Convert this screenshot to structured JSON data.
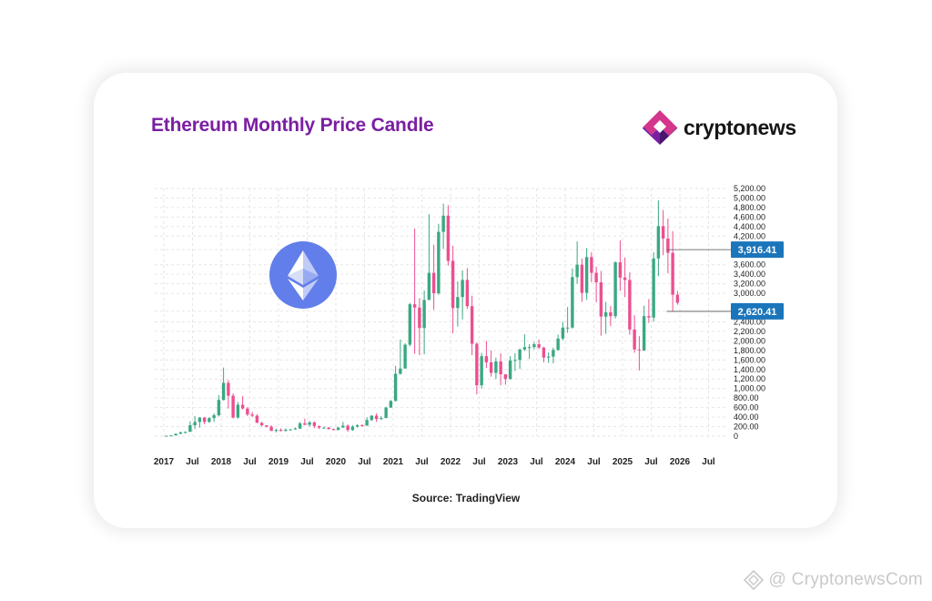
{
  "header": {
    "title": "Ethereum Monthly Price Candle",
    "logo_text": "cryptonews"
  },
  "footer": {
    "source": "Source: TradingView",
    "watermark": "@ CryptonewsCom"
  },
  "colors": {
    "title": "#7a1fa2",
    "up": "#3aa882",
    "down": "#ec4f91",
    "price_tag": "#1b75bb",
    "eth_badge": "#627eea",
    "logo_purple": "#7a1fa2",
    "logo_pink": "#d4368c"
  },
  "icons": {
    "eth": "ethereum-icon",
    "logo": "cryptonews-logo-icon",
    "watermark": "cryptonews-watermark-icon"
  },
  "chart_data": {
    "type": "candlestick",
    "title": "Ethereum Monthly Price Candle",
    "y_axis_position": "right",
    "grid": true,
    "ylim": [
      0,
      5200
    ],
    "y_ticks": [
      "0",
      "200.00",
      "400.00",
      "600.00",
      "800.00",
      "1,000.00",
      "1,200.00",
      "1,400.00",
      "1,600.00",
      "1,800.00",
      "2,000.00",
      "2,200.00",
      "2,400.00",
      "2,620.41",
      "3,000.00",
      "3,200.00",
      "3,400.00",
      "3,600.00",
      "3,916.41",
      "4,200.00",
      "4,400.00",
      "4,600.00",
      "4,800.00",
      "5,000.00",
      "5,200.00"
    ],
    "x_ticks": [
      {
        "label": "2017",
        "t": 0
      },
      {
        "label": "Jul",
        "t": 6
      },
      {
        "label": "2018",
        "t": 12
      },
      {
        "label": "Jul",
        "t": 18
      },
      {
        "label": "2019",
        "t": 24
      },
      {
        "label": "Jul",
        "t": 30
      },
      {
        "label": "2020",
        "t": 36
      },
      {
        "label": "Jul",
        "t": 42
      },
      {
        "label": "2021",
        "t": 48
      },
      {
        "label": "Jul",
        "t": 54
      },
      {
        "label": "2022",
        "t": 60
      },
      {
        "label": "Jul",
        "t": 66
      },
      {
        "label": "2023",
        "t": 72
      },
      {
        "label": "Jul",
        "t": 78
      },
      {
        "label": "2024",
        "t": 84
      },
      {
        "label": "Jul",
        "t": 90
      },
      {
        "label": "2025",
        "t": 96
      },
      {
        "label": "Jul",
        "t": 102
      },
      {
        "label": "2026",
        "t": 108
      },
      {
        "label": "Jul",
        "t": 114
      }
    ],
    "price_labels": [
      {
        "text": "3,916.41",
        "value": 3916.41
      },
      {
        "text": "2,620.41",
        "value": 2620.41
      }
    ],
    "candles": [
      [
        8,
        8,
        10,
        7
      ],
      [
        10,
        16,
        17,
        9
      ],
      [
        16,
        50,
        55,
        15
      ],
      [
        50,
        80,
        95,
        45
      ],
      [
        80,
        90,
        100,
        60
      ],
      [
        90,
        230,
        310,
        200
      ],
      [
        230,
        300,
        420,
        150
      ],
      [
        300,
        390,
        400,
        180
      ],
      [
        390,
        300,
        400,
        250
      ],
      [
        300,
        380,
        395,
        280
      ],
      [
        380,
        440,
        480,
        300
      ],
      [
        440,
        760,
        860,
        410
      ],
      [
        760,
        1120,
        1440,
        750
      ],
      [
        1120,
        850,
        1180,
        580
      ],
      [
        850,
        390,
        900,
        370
      ],
      [
        390,
        660,
        720,
        370
      ],
      [
        660,
        580,
        840,
        560
      ],
      [
        580,
        455,
        610,
        420
      ],
      [
        455,
        430,
        510,
        400
      ],
      [
        430,
        280,
        460,
        280
      ],
      [
        280,
        230,
        300,
        200
      ],
      [
        230,
        200,
        230,
        180
      ],
      [
        200,
        110,
        230,
        110
      ],
      [
        110,
        130,
        160,
        80
      ],
      [
        130,
        110,
        165,
        100
      ],
      [
        110,
        135,
        165,
        100
      ],
      [
        135,
        140,
        155,
        130
      ],
      [
        140,
        160,
        185,
        135
      ],
      [
        160,
        270,
        300,
        150
      ],
      [
        270,
        240,
        370,
        230
      ],
      [
        240,
        290,
        320,
        200
      ],
      [
        290,
        215,
        310,
        170
      ],
      [
        215,
        180,
        220,
        150
      ],
      [
        180,
        180,
        200,
        160
      ],
      [
        180,
        150,
        190,
        140
      ],
      [
        150,
        130,
        160,
        120
      ],
      [
        130,
        180,
        200,
        125
      ],
      [
        180,
        220,
        300,
        175
      ],
      [
        220,
        130,
        250,
        90
      ],
      [
        130,
        200,
        230,
        110
      ],
      [
        200,
        230,
        250,
        180
      ],
      [
        230,
        220,
        250,
        200
      ],
      [
        220,
        340,
        400,
        220
      ],
      [
        340,
        430,
        440,
        320
      ],
      [
        430,
        360,
        480,
        300
      ],
      [
        360,
        380,
        420,
        340
      ],
      [
        380,
        600,
        620,
        380
      ],
      [
        600,
        740,
        760,
        600
      ],
      [
        740,
        1310,
        1475,
        730
      ],
      [
        1310,
        1420,
        2030,
        1290
      ],
      [
        1420,
        1920,
        1950,
        1420
      ],
      [
        1920,
        2770,
        2800,
        1890
      ],
      [
        2770,
        2700,
        4360,
        1730
      ],
      [
        2700,
        2270,
        2900,
        1700
      ],
      [
        2270,
        2860,
        3060,
        1720
      ],
      [
        2860,
        3430,
        4660,
        2940
      ],
      [
        3430,
        3000,
        4020,
        2650
      ],
      [
        3000,
        4290,
        4460,
        2970
      ],
      [
        4290,
        4630,
        4880,
        3930
      ],
      [
        4630,
        3680,
        4850,
        3580
      ],
      [
        3680,
        2690,
        4000,
        2160
      ],
      [
        2690,
        2920,
        3250,
        2300
      ],
      [
        2920,
        3280,
        3480,
        2450
      ],
      [
        3280,
        2730,
        3530,
        2670
      ],
      [
        2730,
        1940,
        2950,
        1700
      ],
      [
        1940,
        1070,
        1970,
        880
      ],
      [
        1070,
        1680,
        1750,
        1000
      ],
      [
        1680,
        1550,
        2000,
        1430
      ],
      [
        1550,
        1330,
        1800,
        1250
      ],
      [
        1330,
        1570,
        1650,
        1200
      ],
      [
        1570,
        1300,
        1740,
        1070
      ],
      [
        1300,
        1200,
        1300,
        1080
      ],
      [
        1200,
        1590,
        1680,
        1190
      ],
      [
        1590,
        1600,
        1740,
        1370
      ],
      [
        1600,
        1820,
        1840,
        1410
      ],
      [
        1820,
        1870,
        2140,
        1790
      ],
      [
        1870,
        1870,
        1930,
        1620
      ],
      [
        1870,
        1930,
        1980,
        1820
      ],
      [
        1930,
        1860,
        2030,
        1830
      ],
      [
        1860,
        1650,
        1880,
        1550
      ],
      [
        1650,
        1670,
        1760,
        1540
      ],
      [
        1670,
        1810,
        1860,
        1530
      ],
      [
        1810,
        2050,
        2130,
        1790
      ],
      [
        2050,
        2280,
        2400,
        2010
      ],
      [
        2280,
        2280,
        2710,
        2170
      ],
      [
        2280,
        3340,
        3520,
        2260
      ],
      [
        3340,
        3600,
        4090,
        3200
      ],
      [
        3600,
        3010,
        3730,
        2820
      ],
      [
        3010,
        3760,
        3950,
        2860
      ],
      [
        3760,
        3430,
        3860,
        3230
      ],
      [
        3430,
        3230,
        3560,
        2810
      ],
      [
        3230,
        2510,
        3470,
        2110
      ],
      [
        2510,
        2600,
        2820,
        2150
      ],
      [
        2600,
        2520,
        2730,
        2310
      ],
      [
        2520,
        3650,
        3670,
        2470
      ],
      [
        3650,
        3330,
        4110,
        3050
      ],
      [
        3330,
        3280,
        3750,
        2920
      ],
      [
        3280,
        2240,
        3440,
        2130
      ],
      [
        2240,
        1820,
        2540,
        1750
      ],
      [
        1820,
        1800,
        2100,
        1380
      ],
      [
        1800,
        2520,
        2740,
        1790
      ],
      [
        2520,
        2490,
        2880,
        2380
      ],
      [
        2490,
        3730,
        3860,
        2410
      ],
      [
        3730,
        4410,
        4950,
        3360
      ],
      [
        4410,
        4150,
        4750,
        3800
      ],
      [
        4150,
        3850,
        4570,
        3420
      ],
      [
        3850,
        2970,
        4300,
        2620
      ],
      [
        2970,
        2800,
        3050,
        2760
      ]
    ]
  }
}
